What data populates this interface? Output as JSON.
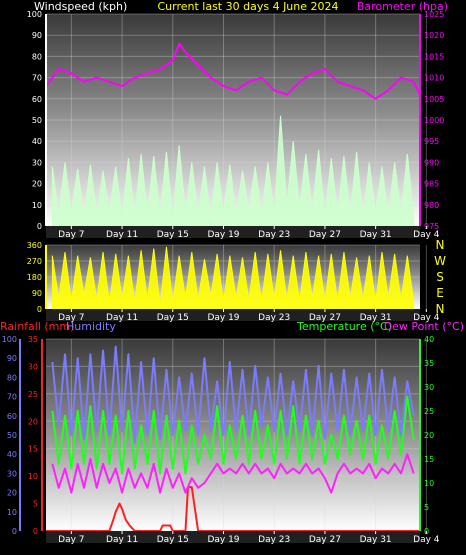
{
  "header": {
    "left_title": "Windspeed (kph)",
    "center_title": "Current last 30 days 4 June 2024",
    "right_title": "Barometer (hpa)"
  },
  "bottom_header": {
    "rain_title": "Rainfall (mm)",
    "hum_title": "Humidity",
    "temp_title": "Temperature (°C)",
    "dew_title": "Dew Point (°C)"
  },
  "x_ticks": [
    "Day 7",
    "Day 11",
    "Day 15",
    "Day 19",
    "Day 23",
    "Day 27",
    "Day 31",
    "Day 4"
  ],
  "compass": [
    "N",
    "W",
    "S",
    "E",
    "N"
  ],
  "colors": {
    "wind": "#ccffcc",
    "baro": "#ff00ff",
    "winddir": "#ffff00",
    "rain": "#ff2020",
    "humidity": "#7b7bff",
    "temperature": "#20ff20",
    "dewpoint": "#ff20ff",
    "left_axis_wind": "#ffffff",
    "right_axis_baro": "#ff00ff"
  },
  "chart_data": [
    {
      "type": "area",
      "title": "Windspeed (kph)",
      "ylabel": "Windspeed (kph)",
      "ylim": [
        0,
        100
      ],
      "yticks": [
        0,
        10,
        20,
        30,
        40,
        50,
        60,
        70,
        80,
        90,
        100
      ],
      "y2label": "Barometer (hpa)",
      "y2lim": [
        975,
        1025
      ],
      "y2ticks": [
        975,
        980,
        985,
        990,
        995,
        1000,
        1005,
        1010,
        1015,
        1020,
        1025
      ],
      "xlim": [
        5,
        34.5
      ],
      "series": [
        {
          "name": "Windspeed (kph)",
          "type": "area",
          "x": [
            5.5,
            6,
            6.5,
            7,
            7.5,
            8,
            8.5,
            9,
            9.5,
            10,
            10.5,
            11,
            11.5,
            12,
            12.5,
            13,
            13.5,
            14,
            14.5,
            15,
            15.5,
            16,
            16.5,
            17,
            17.5,
            18,
            18.5,
            19,
            19.5,
            20,
            20.5,
            21,
            21.5,
            22,
            22.5,
            23,
            23.5,
            24,
            24.5,
            25,
            25.5,
            26,
            26.5,
            27,
            27.5,
            28,
            28.5,
            29,
            29.5,
            30,
            30.5,
            31,
            31.5,
            32,
            32.5,
            33,
            33.5,
            34
          ],
          "y": [
            28,
            5,
            30,
            6,
            27,
            4,
            29,
            5,
            26,
            6,
            28,
            4,
            32,
            5,
            34,
            6,
            33,
            5,
            35,
            4,
            38,
            6,
            30,
            5,
            28,
            4,
            30,
            6,
            29,
            5,
            26,
            7,
            28,
            5,
            30,
            6,
            52,
            10,
            40,
            8,
            34,
            6,
            36,
            5,
            32,
            6,
            33,
            5,
            35,
            4,
            30,
            6,
            28,
            5,
            30,
            6,
            34,
            5
          ]
        },
        {
          "name": "Barometer (hpa)",
          "type": "line",
          "axis": "y2",
          "x": [
            5,
            6,
            7,
            8,
            9,
            10,
            11,
            12,
            13,
            14,
            15,
            15.5,
            16,
            17,
            18,
            19,
            20,
            21,
            22,
            23,
            24,
            25,
            26,
            27,
            28,
            29,
            30,
            31,
            32,
            33,
            34,
            34.5
          ],
          "y": [
            1008,
            1012,
            1011,
            1009,
            1010,
            1009,
            1008,
            1010,
            1011,
            1012,
            1014,
            1018,
            1016,
            1013,
            1010,
            1008,
            1007,
            1009,
            1010,
            1007,
            1006,
            1009,
            1011,
            1012,
            1009,
            1008,
            1007,
            1005,
            1007,
            1010,
            1009,
            1006
          ]
        }
      ]
    },
    {
      "type": "area",
      "title": "Wind Direction",
      "ylim": [
        0,
        360
      ],
      "yticks": [
        0,
        90,
        180,
        270,
        360
      ],
      "xlim": [
        5,
        34.5
      ],
      "series": [
        {
          "name": "Wind Direction",
          "type": "area",
          "x": [
            5.5,
            6,
            6.5,
            7,
            7.5,
            8,
            8.5,
            9,
            9.5,
            10,
            10.5,
            11,
            11.5,
            12,
            12.5,
            13,
            13.5,
            14,
            14.5,
            15,
            15.5,
            16,
            16.5,
            17,
            17.5,
            18,
            18.5,
            19,
            19.5,
            20,
            20.5,
            21,
            21.5,
            22,
            22.5,
            23,
            23.5,
            24,
            24.5,
            25,
            25.5,
            26,
            26.5,
            27,
            27.5,
            28,
            28.5,
            29,
            29.5,
            30,
            30.5,
            31,
            31.5,
            32,
            32.5,
            33,
            33.5,
            34
          ],
          "y": [
            300,
            60,
            320,
            40,
            300,
            80,
            290,
            50,
            320,
            30,
            310,
            60,
            300,
            40,
            330,
            50,
            340,
            20,
            350,
            40,
            300,
            60,
            320,
            50,
            280,
            70,
            310,
            40,
            300,
            60,
            290,
            50,
            320,
            40,
            310,
            60,
            330,
            50,
            300,
            40,
            320,
            60,
            300,
            50,
            310,
            40,
            320,
            60,
            290,
            50,
            300,
            40,
            320,
            60,
            310,
            50,
            300,
            40
          ]
        }
      ]
    },
    {
      "type": "line",
      "title": "",
      "ylabel": "Rainfall (mm)",
      "ylim": [
        0,
        35
      ],
      "yticks": [
        0,
        5,
        10,
        15,
        20,
        25,
        30,
        35
      ],
      "y3label": "Humidity",
      "y3lim": [
        0,
        100
      ],
      "y3ticks": [
        0,
        10,
        20,
        30,
        40,
        50,
        60,
        70,
        80,
        90,
        100
      ],
      "y2label": "Temperature (°C)",
      "y2lim": [
        0,
        40
      ],
      "y2ticks": [
        0,
        5,
        10,
        15,
        20,
        25,
        30,
        35,
        40
      ],
      "xlim": [
        5,
        34.5
      ],
      "series": [
        {
          "name": "Rainfall (mm)",
          "axis": "y",
          "x": [
            5,
            10,
            10.3,
            10.5,
            10.8,
            11,
            11.3,
            11.6,
            12,
            13,
            14,
            14.2,
            14.8,
            15,
            16,
            16.2,
            16.5,
            17,
            34.5
          ],
          "y": [
            0,
            0,
            2,
            3.5,
            5,
            4,
            2,
            1,
            0,
            0,
            0,
            1,
            1,
            0,
            0,
            8,
            8,
            0,
            0
          ]
        },
        {
          "name": "Humidity",
          "axis": "y3",
          "x": [
            5.5,
            6,
            6.5,
            7,
            7.5,
            8,
            8.5,
            9,
            9.5,
            10,
            10.5,
            11,
            11.5,
            12,
            12.5,
            13,
            13.5,
            14,
            14.5,
            15,
            15.5,
            16,
            16.5,
            17,
            17.5,
            18,
            18.5,
            19,
            19.5,
            20,
            20.5,
            21,
            21.5,
            22,
            22.5,
            23,
            23.5,
            24,
            24.5,
            25,
            25.5,
            26,
            26.5,
            27,
            27.5,
            28,
            28.5,
            29,
            29.5,
            30,
            30.5,
            31,
            31.5,
            32,
            32.5,
            33,
            33.5,
            34
          ],
          "y": [
            88,
            55,
            92,
            50,
            90,
            48,
            92,
            52,
            94,
            50,
            96,
            52,
            92,
            46,
            88,
            50,
            90,
            48,
            84,
            50,
            80,
            52,
            82,
            50,
            90,
            52,
            78,
            50,
            88,
            52,
            84,
            50,
            86,
            54,
            80,
            52,
            82,
            50,
            78,
            52,
            84,
            50,
            86,
            48,
            82,
            52,
            84,
            50,
            80,
            52,
            82,
            50,
            84,
            52,
            80,
            50,
            78,
            60
          ]
        },
        {
          "name": "Temperature (°C)",
          "axis": "y2",
          "x": [
            5.5,
            6,
            6.5,
            7,
            7.5,
            8,
            8.5,
            9,
            9.5,
            10,
            10.5,
            11,
            11.5,
            12,
            12.5,
            13,
            13.5,
            14,
            14.5,
            15,
            15.5,
            16,
            16.5,
            17,
            17.5,
            18,
            18.5,
            19,
            19.5,
            20,
            20.5,
            21,
            21.5,
            22,
            22.5,
            23,
            23.5,
            24,
            24.5,
            25,
            25.5,
            26,
            26.5,
            27,
            27.5,
            28,
            28.5,
            29,
            29.5,
            30,
            30.5,
            31,
            31.5,
            32,
            32.5,
            33,
            33.5,
            34
          ],
          "y": [
            25,
            14,
            24,
            13,
            25,
            14,
            26,
            13,
            25,
            14,
            24,
            12,
            25,
            13,
            22,
            14,
            25,
            12,
            24,
            13,
            23,
            12,
            22,
            14,
            20,
            15,
            26,
            14,
            22,
            15,
            24,
            14,
            25,
            15,
            22,
            14,
            25,
            15,
            26,
            14,
            24,
            15,
            23,
            14,
            20,
            15,
            24,
            16,
            23,
            15,
            24,
            14,
            22,
            15,
            25,
            16,
            28,
            19
          ]
        },
        {
          "name": "Dew Point (°C)",
          "axis": "y2",
          "x": [
            5.5,
            6,
            6.5,
            7,
            7.5,
            8,
            8.5,
            9,
            9.5,
            10,
            10.5,
            11,
            11.5,
            12,
            12.5,
            13,
            13.5,
            14,
            14.5,
            15,
            15.5,
            16,
            16.5,
            17,
            17.5,
            18,
            18.5,
            19,
            19.5,
            20,
            20.5,
            21,
            21.5,
            22,
            22.5,
            23,
            23.5,
            24,
            24.5,
            25,
            25.5,
            26,
            26.5,
            27,
            27.5,
            28,
            28.5,
            29,
            29.5,
            30,
            30.5,
            31,
            31.5,
            32,
            32.5,
            33,
            33.5,
            34
          ],
          "y": [
            14,
            9,
            13,
            8,
            14,
            9,
            15,
            9,
            14,
            10,
            13,
            8,
            13,
            9,
            12,
            9,
            14,
            8,
            13,
            9,
            12,
            8,
            11,
            9,
            10,
            12,
            14,
            12,
            13,
            12,
            14,
            12,
            14,
            12,
            13,
            11,
            14,
            12,
            13,
            12,
            14,
            12,
            13,
            11,
            8,
            12,
            14,
            12,
            13,
            12,
            14,
            11,
            13,
            12,
            14,
            12,
            16,
            12
          ]
        }
      ]
    }
  ]
}
